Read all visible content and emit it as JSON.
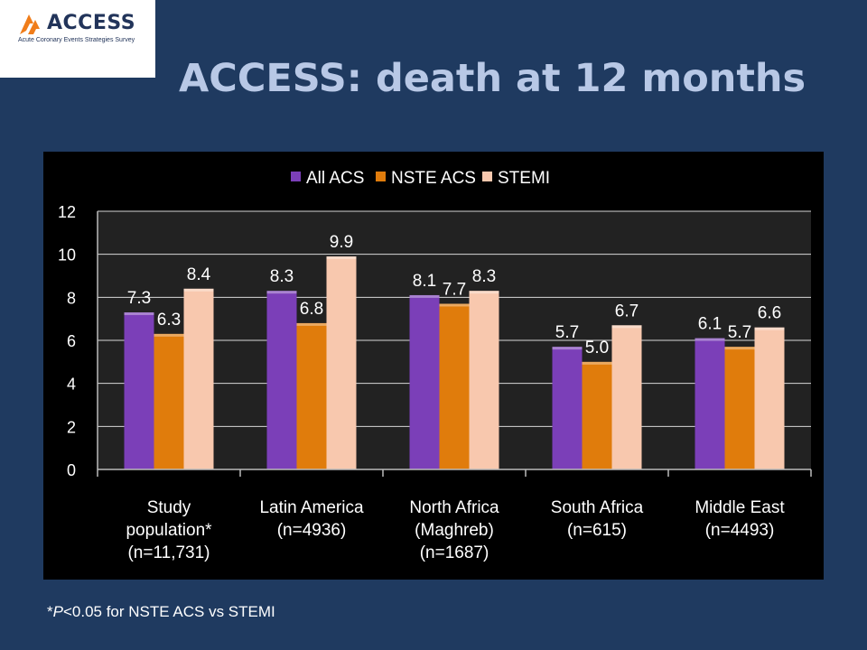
{
  "logo": {
    "name": "ACCESS",
    "tagline": "Acute Coronary Events Strategies Survey",
    "accent": "#f07d1a",
    "text_color": "#22345a"
  },
  "slide": {
    "title": "ACCESS: death at 12 months",
    "footnote_star": "*",
    "footnote_p": "P",
    "footnote_rest": "<0.05 for NSTE ACS vs STEMI",
    "background": "#1f3a60",
    "title_color": "#b8c8e6"
  },
  "chart_data": {
    "type": "bar",
    "categories": [
      [
        "Study",
        "population*",
        "(n=11,731)"
      ],
      [
        "Latin America",
        "(n=4936)"
      ],
      [
        "North Africa",
        "(Maghreb)",
        "(n=1687)"
      ],
      [
        "South Africa",
        "(n=615)"
      ],
      [
        "Middle East",
        "(n=4493)"
      ]
    ],
    "series": [
      {
        "name": "All ACS",
        "color": "#7b3fb8",
        "values": [
          7.3,
          8.3,
          8.1,
          5.7,
          6.1
        ],
        "labels": [
          "7.3",
          "8.3",
          "8.1",
          "5.7",
          "6.1"
        ]
      },
      {
        "name": "NSTE ACS",
        "color": "#e07c0c",
        "values": [
          6.3,
          6.8,
          7.7,
          5.0,
          5.7
        ],
        "labels": [
          "6.3",
          "6.8",
          "7.7",
          "5.0",
          "5.7"
        ]
      },
      {
        "name": "STEMI",
        "color": "#f8c8ae",
        "values": [
          8.4,
          9.9,
          8.3,
          6.7,
          6.6
        ],
        "labels": [
          "8.4",
          "9.9",
          "8.3",
          "6.7",
          "6.6"
        ]
      }
    ],
    "ylim": [
      0,
      12
    ],
    "yticks": [
      "0",
      "2",
      "4",
      "6",
      "8",
      "10",
      "12"
    ],
    "grid": true,
    "legend_position": "top-center",
    "plot_background": "#222222",
    "grid_color": "#d8d8d8"
  }
}
